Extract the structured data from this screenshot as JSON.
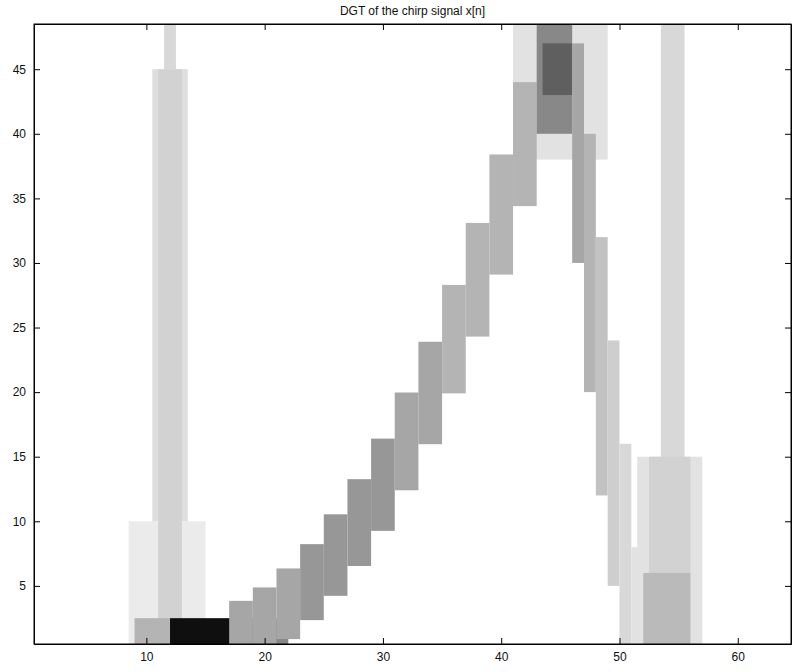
{
  "chart_data": {
    "type": "heatmap",
    "title": "DGT of the chirp signal x[n]",
    "xlim": [
      0.5,
      64.5
    ],
    "xticks": [
      10,
      20,
      30,
      40,
      50,
      60
    ],
    "ylim": [
      0.5,
      48.5
    ],
    "yticks": [
      5,
      10,
      15,
      20,
      25,
      30,
      35,
      40,
      45
    ],
    "grid": false,
    "color": "greys",
    "zlim": [
      0,
      1
    ],
    "cells": [
      [
        8.5,
        15,
        0.5,
        10,
        0.15
      ],
      [
        10.5,
        13.5,
        10,
        45,
        0.22
      ],
      [
        11,
        13,
        0.5,
        45,
        0.28
      ],
      [
        11.5,
        12.5,
        45,
        48.5,
        0.25
      ],
      [
        51.5,
        57,
        0.5,
        15,
        0.2
      ],
      [
        53.5,
        55.5,
        0.5,
        48.5,
        0.25
      ],
      [
        52.5,
        56,
        6,
        15,
        0.28
      ],
      [
        52,
        56,
        0.5,
        6,
        0.38
      ],
      [
        41,
        49,
        38,
        48.5,
        0.2
      ],
      [
        9,
        12,
        0.5,
        2.5,
        0.4
      ],
      [
        12,
        18,
        0.5,
        2.5,
        0.95
      ],
      [
        18,
        22,
        0.5,
        2.5,
        0.55
      ],
      [
        17,
        19,
        0.5,
        3.84,
        0.45
      ],
      [
        19,
        21,
        0.5,
        4.88,
        0.45
      ],
      [
        21,
        23,
        0.88,
        6.35,
        0.45
      ],
      [
        23,
        25,
        2.35,
        8.23,
        0.5
      ],
      [
        25,
        27,
        4.23,
        10.54,
        0.5
      ],
      [
        27,
        29,
        6.54,
        13.26,
        0.5
      ],
      [
        29,
        31,
        9.26,
        16.4,
        0.5
      ],
      [
        31,
        33,
        12.4,
        19.97,
        0.45
      ],
      [
        33,
        35,
        15.97,
        23.9,
        0.45
      ],
      [
        35,
        37,
        19.9,
        28.3,
        0.4
      ],
      [
        37,
        39,
        24.3,
        33.1,
        0.4
      ],
      [
        39,
        41,
        29.1,
        38.4,
        0.4
      ],
      [
        41,
        43,
        34.4,
        44,
        0.4
      ],
      [
        43,
        46,
        40,
        48.5,
        0.55
      ],
      [
        43.5,
        46,
        43,
        47,
        0.7
      ],
      [
        46,
        47,
        30,
        47,
        0.45
      ],
      [
        47,
        48,
        20,
        40,
        0.4
      ],
      [
        48,
        49,
        12,
        32,
        0.35
      ],
      [
        49,
        50,
        5,
        24,
        0.3
      ],
      [
        50,
        51,
        0.5,
        16,
        0.25
      ],
      [
        51,
        52,
        0.5,
        8,
        0.2
      ]
    ]
  }
}
